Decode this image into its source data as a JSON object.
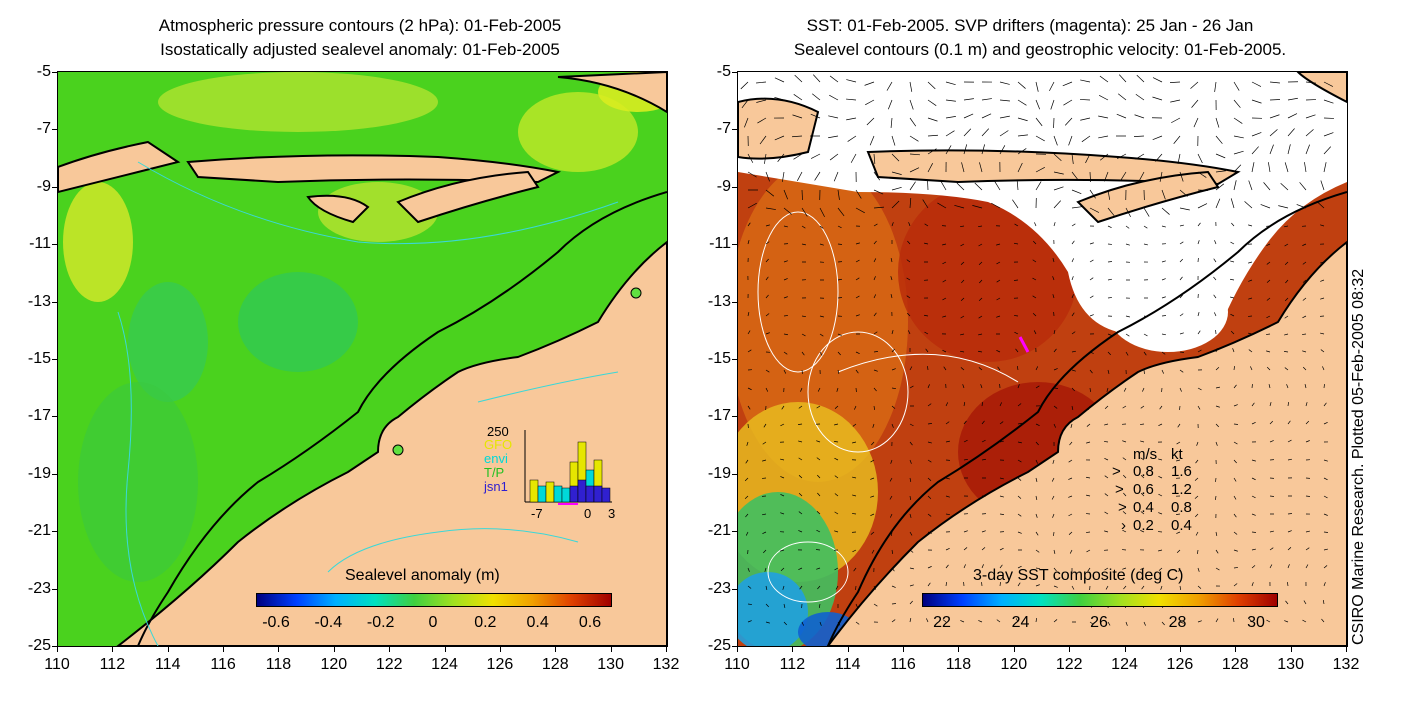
{
  "left_panel": {
    "title_line1": "Atmospheric pressure contours (2 hPa): 01-Feb-2005",
    "title_line2": "Isostatically adjusted sealevel anomaly: 01-Feb-2005",
    "colorbar": {
      "title": "Sealevel anomaly (m)",
      "labels": [
        "-0.6",
        "-0.4",
        "-0.2",
        "0",
        "0.2",
        "0.4",
        "0.6"
      ]
    },
    "inset": {
      "top_value": "250",
      "legend": [
        {
          "label": "GFO",
          "color": "#e6e600"
        },
        {
          "label": "envi",
          "color": "#00d8d8"
        },
        {
          "label": "T/P",
          "color": "#22c022"
        },
        {
          "label": "jsn1",
          "color": "#3020d0"
        }
      ],
      "x_labels": [
        "-7",
        "0",
        "3"
      ]
    }
  },
  "right_panel": {
    "title_line1": "SST: 01-Feb-2005. SVP drifters (magenta): 25 Jan - 26 Jan",
    "title_line2": "Sealevel contours (0.1 m) and geostrophic velocity: 01-Feb-2005.",
    "colorbar": {
      "title": "3-day SST composite (deg C)",
      "labels": [
        "22",
        "24",
        "26",
        "28",
        "30"
      ]
    },
    "velocity_legend": {
      "header_ms": "m/s",
      "header_kt": "kt",
      "rows": [
        {
          "ms": "0.8",
          "kt": "1.6"
        },
        {
          "ms": "0.6",
          "kt": "1.2"
        },
        {
          "ms": "0.4",
          "kt": "0.8"
        },
        {
          "ms": "0.2",
          "kt": "0.4"
        }
      ]
    }
  },
  "axes": {
    "y_labels": [
      "-5",
      "-7",
      "-9",
      "-11",
      "-13",
      "-15",
      "-17",
      "-19",
      "-21",
      "-23",
      "-25"
    ],
    "x_labels": [
      "110",
      "112",
      "114",
      "116",
      "118",
      "120",
      "122",
      "124",
      "126",
      "128",
      "130",
      "132"
    ]
  },
  "credit": "CSIRO Marine Research. Plotted 05-Feb-2005 08:32",
  "colors": {
    "land": "#f8c89a",
    "ocean_green": "#44d020",
    "ocean_yellow": "#c8e820",
    "sst_red": "#b02008",
    "sst_orange": "#d86010",
    "cloud_white": "#ffffff"
  }
}
